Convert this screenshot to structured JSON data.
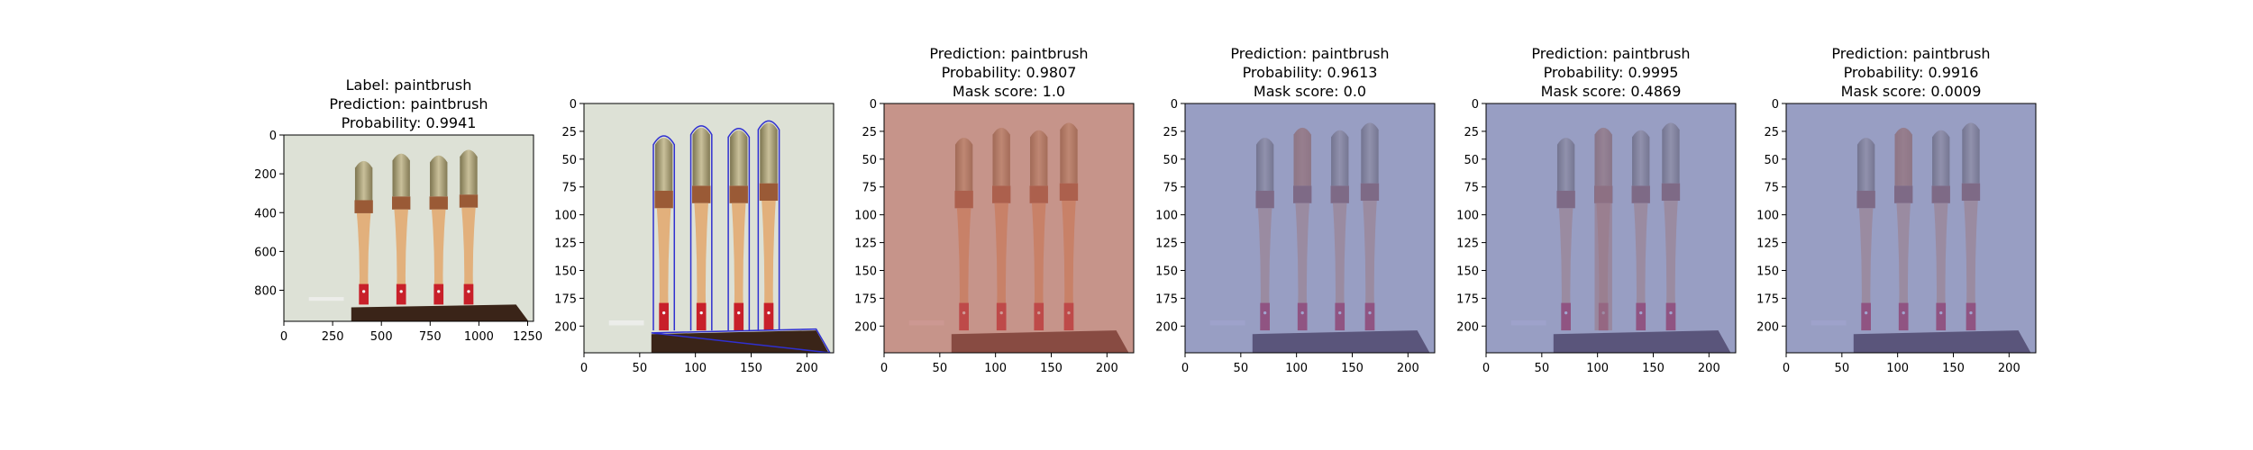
{
  "chart_data": [
    {
      "type": "image",
      "title_lines": [
        "Label: paintbrush",
        "Prediction: paintbrush",
        "Probability: 0.9941"
      ],
      "xlim": [
        0,
        1280
      ],
      "ylim": [
        960,
        0
      ],
      "xticks": [
        "0",
        "250",
        "500",
        "750",
        "1000",
        "1250"
      ],
      "yticks": [
        "0",
        "200",
        "400",
        "600",
        "800"
      ],
      "overlay": "original photo",
      "overlay_color": "",
      "highlight_brush": -1
    },
    {
      "type": "image",
      "title_lines": [],
      "xlim": [
        0,
        224
      ],
      "ylim": [
        224,
        0
      ],
      "xticks": [
        "0",
        "50",
        "100",
        "150",
        "200"
      ],
      "yticks": [
        "0",
        "25",
        "50",
        "75",
        "100",
        "125",
        "150",
        "175",
        "200"
      ],
      "overlay": "photo with blue segmentation contours",
      "overlay_color": "#3030d0",
      "highlight_brush": -1
    },
    {
      "type": "image",
      "title_lines": [
        "Prediction: paintbrush",
        "Probability: 0.9807",
        "Mask score: 1.0"
      ],
      "xlim": [
        0,
        224
      ],
      "ylim": [
        224,
        0
      ],
      "xticks": [
        "0",
        "50",
        "100",
        "150",
        "200"
      ],
      "yticks": [
        "0",
        "25",
        "50",
        "75",
        "100",
        "125",
        "150",
        "175",
        "200"
      ],
      "overlay": "red background mask",
      "overlay_color": "#b8645c",
      "highlight_brush": -1
    },
    {
      "type": "image",
      "title_lines": [
        "Prediction: paintbrush",
        "Probability: 0.9613",
        "Mask score: 0.0"
      ],
      "xlim": [
        0,
        224
      ],
      "ylim": [
        224,
        0
      ],
      "xticks": [
        "0",
        "50",
        "100",
        "150",
        "200"
      ],
      "yticks": [
        "0",
        "25",
        "50",
        "75",
        "100",
        "125",
        "150",
        "175",
        "200"
      ],
      "overlay": "blue mask, second brush head orange",
      "overlay_color": "#6e74b8",
      "highlight_brush": 1,
      "highlight_extent": "head"
    },
    {
      "type": "image",
      "title_lines": [
        "Prediction: paintbrush",
        "Probability: 0.9995",
        "Mask score: 0.4869"
      ],
      "xlim": [
        0,
        224
      ],
      "ylim": [
        224,
        0
      ],
      "xticks": [
        "0",
        "50",
        "100",
        "150",
        "200"
      ],
      "yticks": [
        "0",
        "25",
        "50",
        "75",
        "100",
        "125",
        "150",
        "175",
        "200"
      ],
      "overlay": "blue mask, second brush fully orange",
      "overlay_color": "#6e74b8",
      "highlight_brush": 1,
      "highlight_extent": "full"
    },
    {
      "type": "image",
      "title_lines": [
        "Prediction: paintbrush",
        "Probability: 0.9916",
        "Mask score: 0.0009"
      ],
      "xlim": [
        0,
        224
      ],
      "ylim": [
        224,
        0
      ],
      "xticks": [
        "0",
        "50",
        "100",
        "150",
        "200"
      ],
      "yticks": [
        "0",
        "25",
        "50",
        "75",
        "100",
        "125",
        "150",
        "175",
        "200"
      ],
      "overlay": "blue mask, second brush head orange",
      "overlay_color": "#6e74b8",
      "highlight_brush": 1,
      "highlight_extent": "head"
    }
  ]
}
